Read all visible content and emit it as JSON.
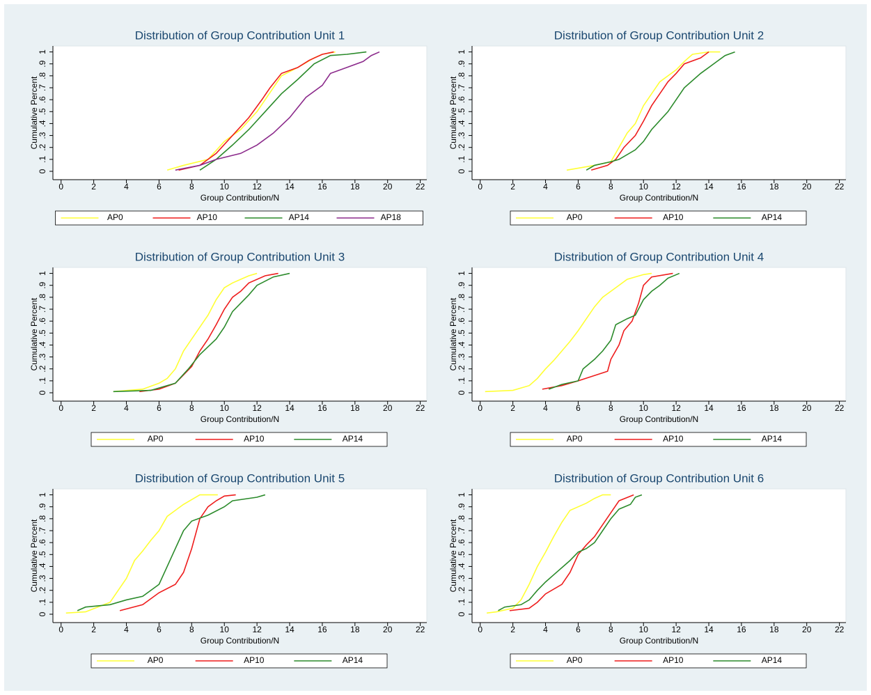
{
  "chart_data": [
    {
      "type": "line",
      "title": "Distribution of Group Contribution Unit 1",
      "xlabel": "Group Contribution/N",
      "ylabel": "Cumulative Percent",
      "xlim": [
        -0.5,
        22.4
      ],
      "ylim": [
        -0.07,
        1.05
      ],
      "xticks": [
        0,
        2,
        4,
        6,
        8,
        10,
        12,
        14,
        16,
        18,
        20,
        22
      ],
      "yticks": [
        0,
        {
          "value": 0.1,
          "label": ".1"
        },
        {
          "value": 0.2,
          "label": ".2"
        },
        {
          "value": 0.3,
          "label": ".3"
        },
        {
          "value": 0.4,
          "label": ".4"
        },
        {
          "value": 0.5,
          "label": ".5"
        },
        {
          "value": 0.6,
          "label": ".6"
        },
        {
          "value": 0.7,
          "label": ".7"
        },
        {
          "value": 0.8,
          "label": ".8"
        },
        {
          "value": 0.9,
          "label": ".9"
        },
        1
      ],
      "series": [
        {
          "name": "AP0",
          "color": "#ffff33",
          "x": [
            6.5,
            7.5,
            9,
            10,
            11,
            12,
            12.5,
            13,
            13.5,
            14.5,
            15.5,
            16,
            16.8
          ],
          "values": [
            0.01,
            0.05,
            0.1,
            0.25,
            0.35,
            0.5,
            0.6,
            0.7,
            0.8,
            0.87,
            0.95,
            0.98,
            1
          ]
        },
        {
          "name": "AP10",
          "color": "#ee1c1c",
          "x": [
            7.2,
            8.5,
            9.5,
            10.5,
            11.5,
            12.3,
            12.8,
            13.5,
            14.5,
            15.2,
            16,
            16.7
          ],
          "values": [
            0.01,
            0.05,
            0.15,
            0.3,
            0.45,
            0.6,
            0.7,
            0.82,
            0.87,
            0.93,
            0.98,
            1
          ]
        },
        {
          "name": "AP14",
          "color": "#2a8a2a",
          "x": [
            8.5,
            9.5,
            10.5,
            11.5,
            12.5,
            13.5,
            14.5,
            15.5,
            16.5,
            17.5,
            18.7
          ],
          "values": [
            0.01,
            0.1,
            0.22,
            0.35,
            0.5,
            0.65,
            0.77,
            0.9,
            0.97,
            0.98,
            1
          ]
        },
        {
          "name": "AP18",
          "color": "#8b2a8b",
          "x": [
            7,
            8.5,
            9.5,
            11,
            12,
            13,
            14,
            15,
            16,
            16.5,
            17.5,
            18.5,
            19,
            19.5
          ],
          "values": [
            0.01,
            0.05,
            0.1,
            0.15,
            0.22,
            0.32,
            0.45,
            0.62,
            0.72,
            0.82,
            0.87,
            0.92,
            0.97,
            1
          ]
        }
      ]
    },
    {
      "type": "line",
      "title": "Distribution of Group Contribution Unit 2",
      "xlabel": "Group Contribution/N",
      "ylabel": "Cumulative Percent",
      "xlim": [
        -0.5,
        22.4
      ],
      "ylim": [
        -0.07,
        1.05
      ],
      "xticks": [
        0,
        2,
        4,
        6,
        8,
        10,
        12,
        14,
        16,
        18,
        20,
        22
      ],
      "yticks": [
        0,
        {
          "value": 0.1,
          "label": ".1"
        },
        {
          "value": 0.2,
          "label": ".2"
        },
        {
          "value": 0.3,
          "label": ".3"
        },
        {
          "value": 0.4,
          "label": ".4"
        },
        {
          "value": 0.5,
          "label": ".5"
        },
        {
          "value": 0.6,
          "label": ".6"
        },
        {
          "value": 0.7,
          "label": ".7"
        },
        {
          "value": 0.8,
          "label": ".8"
        },
        {
          "value": 0.9,
          "label": ".9"
        },
        1
      ],
      "series": [
        {
          "name": "AP0",
          "color": "#ffff33",
          "x": [
            5.3,
            7,
            8,
            8.5,
            9,
            9.5,
            10,
            10.5,
            11,
            12,
            12.5,
            13,
            14,
            14.7
          ],
          "values": [
            0.01,
            0.05,
            0.08,
            0.2,
            0.32,
            0.4,
            0.55,
            0.65,
            0.75,
            0.85,
            0.92,
            0.98,
            1,
            1
          ]
        },
        {
          "name": "AP10",
          "color": "#ee1c1c",
          "x": [
            6.8,
            7.8,
            8.3,
            8.8,
            9.5,
            10,
            10.5,
            11,
            11.5,
            12,
            12.5,
            13.5,
            14
          ],
          "values": [
            0.01,
            0.05,
            0.1,
            0.2,
            0.3,
            0.42,
            0.55,
            0.65,
            0.75,
            0.82,
            0.9,
            0.95,
            1
          ]
        },
        {
          "name": "AP14",
          "color": "#2a8a2a",
          "x": [
            6.5,
            7,
            8,
            8.5,
            9.5,
            10,
            10.5,
            11.5,
            12,
            12.5,
            13.5,
            14.5,
            15,
            15.6
          ],
          "values": [
            0.01,
            0.05,
            0.08,
            0.1,
            0.18,
            0.25,
            0.35,
            0.5,
            0.6,
            0.7,
            0.82,
            0.92,
            0.97,
            1
          ]
        }
      ]
    },
    {
      "type": "line",
      "title": "Distribution of Group Contribution Unit 3",
      "xlabel": "Group Contribution/N",
      "ylabel": "Cumulative Percent",
      "xlim": [
        -0.5,
        22.4
      ],
      "ylim": [
        -0.07,
        1.05
      ],
      "xticks": [
        0,
        2,
        4,
        6,
        8,
        10,
        12,
        14,
        16,
        18,
        20,
        22
      ],
      "yticks": [
        0,
        {
          "value": 0.1,
          "label": ".1"
        },
        {
          "value": 0.2,
          "label": ".2"
        },
        {
          "value": 0.3,
          "label": ".3"
        },
        {
          "value": 0.4,
          "label": ".4"
        },
        {
          "value": 0.5,
          "label": ".5"
        },
        {
          "value": 0.6,
          "label": ".6"
        },
        {
          "value": 0.7,
          "label": ".7"
        },
        {
          "value": 0.8,
          "label": ".8"
        },
        {
          "value": 0.9,
          "label": ".9"
        },
        1
      ],
      "series": [
        {
          "name": "AP0",
          "color": "#ffff33",
          "x": [
            3.2,
            5,
            6,
            6.5,
            7,
            7.5,
            8,
            8.5,
            9,
            9.5,
            10,
            10.5,
            11,
            11.5,
            12
          ],
          "values": [
            0.01,
            0.03,
            0.08,
            0.12,
            0.2,
            0.35,
            0.45,
            0.55,
            0.65,
            0.78,
            0.88,
            0.92,
            0.95,
            0.98,
            1
          ]
        },
        {
          "name": "AP10",
          "color": "#ee1c1c",
          "x": [
            4.8,
            6,
            7,
            7.5,
            8,
            8.5,
            9,
            9.5,
            10,
            10.5,
            11,
            11.5,
            12.5,
            13.3
          ],
          "values": [
            0.01,
            0.03,
            0.08,
            0.15,
            0.22,
            0.35,
            0.45,
            0.57,
            0.7,
            0.8,
            0.85,
            0.92,
            0.98,
            1
          ]
        },
        {
          "name": "AP14",
          "color": "#2a8a2a",
          "x": [
            3.2,
            5.5,
            7,
            7.8,
            8.5,
            9.5,
            10,
            10.5,
            11,
            11.5,
            12,
            13,
            14
          ],
          "values": [
            0.01,
            0.02,
            0.08,
            0.2,
            0.32,
            0.45,
            0.55,
            0.68,
            0.75,
            0.82,
            0.9,
            0.97,
            1
          ]
        }
      ]
    },
    {
      "type": "line",
      "title": "Distribution of Group Contribution Unit 4",
      "xlabel": "Group Contribution/N",
      "ylabel": "Cumulative Percent",
      "xlim": [
        -0.5,
        22.4
      ],
      "ylim": [
        -0.07,
        1.05
      ],
      "xticks": [
        0,
        2,
        4,
        6,
        8,
        10,
        12,
        14,
        16,
        18,
        20,
        22
      ],
      "yticks": [
        0,
        {
          "value": 0.1,
          "label": ".1"
        },
        {
          "value": 0.2,
          "label": ".2"
        },
        {
          "value": 0.3,
          "label": ".3"
        },
        {
          "value": 0.4,
          "label": ".4"
        },
        {
          "value": 0.5,
          "label": ".5"
        },
        {
          "value": 0.6,
          "label": ".6"
        },
        {
          "value": 0.7,
          "label": ".7"
        },
        {
          "value": 0.8,
          "label": ".8"
        },
        {
          "value": 0.9,
          "label": ".9"
        },
        1
      ],
      "series": [
        {
          "name": "AP0",
          "color": "#ffff33",
          "x": [
            0.3,
            2,
            3,
            3.5,
            4,
            4.5,
            5,
            5.5,
            6,
            6.5,
            7,
            7.5,
            8.5,
            9,
            10,
            10.5
          ],
          "values": [
            0.01,
            0.02,
            0.06,
            0.12,
            0.2,
            0.27,
            0.35,
            0.43,
            0.52,
            0.62,
            0.72,
            0.8,
            0.9,
            0.95,
            0.99,
            1
          ]
        },
        {
          "name": "AP10",
          "color": "#ee1c1c",
          "x": [
            3.8,
            5,
            6,
            7.8,
            8,
            8.5,
            8.8,
            9.3,
            9.7,
            10,
            10.5,
            11.8
          ],
          "values": [
            0.03,
            0.06,
            0.1,
            0.18,
            0.28,
            0.4,
            0.52,
            0.6,
            0.75,
            0.9,
            0.97,
            1
          ]
        },
        {
          "name": "AP14",
          "color": "#2a8a2a",
          "x": [
            4.2,
            5,
            6,
            6.3,
            7,
            7.5,
            8,
            8.3,
            9,
            9.5,
            10,
            10.5,
            11,
            11.5,
            12.2
          ],
          "values": [
            0.03,
            0.07,
            0.1,
            0.2,
            0.28,
            0.35,
            0.44,
            0.57,
            0.62,
            0.65,
            0.78,
            0.85,
            0.9,
            0.96,
            1
          ]
        }
      ]
    },
    {
      "type": "line",
      "title": "Distribution of Group Contribution Unit 5",
      "xlabel": "Group Contribution/N",
      "ylabel": "Cumulative Percent",
      "xlim": [
        -0.5,
        22.4
      ],
      "ylim": [
        -0.07,
        1.05
      ],
      "xticks": [
        0,
        2,
        4,
        6,
        8,
        10,
        12,
        14,
        16,
        18,
        20,
        22
      ],
      "yticks": [
        0,
        {
          "value": 0.1,
          "label": ".1"
        },
        {
          "value": 0.2,
          "label": ".2"
        },
        {
          "value": 0.3,
          "label": ".3"
        },
        {
          "value": 0.4,
          "label": ".4"
        },
        {
          "value": 0.5,
          "label": ".5"
        },
        {
          "value": 0.6,
          "label": ".6"
        },
        {
          "value": 0.7,
          "label": ".7"
        },
        {
          "value": 0.8,
          "label": ".8"
        },
        {
          "value": 0.9,
          "label": ".9"
        },
        1
      ],
      "series": [
        {
          "name": "AP0",
          "color": "#ffff33",
          "x": [
            0.3,
            1.5,
            3,
            3.5,
            4,
            4.5,
            5,
            5.5,
            6,
            6.5,
            7,
            7.5,
            8,
            8.5,
            9.6
          ],
          "values": [
            0.01,
            0.02,
            0.1,
            0.2,
            0.3,
            0.45,
            0.53,
            0.62,
            0.7,
            0.82,
            0.87,
            0.92,
            0.96,
            1,
            1
          ]
        },
        {
          "name": "AP10",
          "color": "#ee1c1c",
          "x": [
            3.6,
            5,
            6,
            7,
            7.5,
            8,
            8.5,
            9,
            9.5,
            10,
            10.7
          ],
          "values": [
            0.03,
            0.08,
            0.18,
            0.25,
            0.35,
            0.55,
            0.8,
            0.9,
            0.95,
            0.99,
            1
          ]
        },
        {
          "name": "AP14",
          "color": "#2a8a2a",
          "x": [
            1,
            1.5,
            3,
            4,
            5,
            6,
            6.5,
            7,
            7.5,
            8,
            9,
            10,
            10.5,
            12,
            12.5
          ],
          "values": [
            0.03,
            0.06,
            0.08,
            0.12,
            0.15,
            0.25,
            0.4,
            0.55,
            0.7,
            0.78,
            0.83,
            0.9,
            0.95,
            0.98,
            1
          ]
        }
      ]
    },
    {
      "type": "line",
      "title": "Distribution of Group Contribution Unit 6",
      "xlabel": "Group Contribution/N",
      "ylabel": "Cumulative Percent",
      "xlim": [
        -0.5,
        22.4
      ],
      "ylim": [
        -0.07,
        1.05
      ],
      "xticks": [
        0,
        2,
        4,
        6,
        8,
        10,
        12,
        14,
        16,
        18,
        20,
        22
      ],
      "yticks": [
        0,
        {
          "value": 0.1,
          "label": ".1"
        },
        {
          "value": 0.2,
          "label": ".2"
        },
        {
          "value": 0.3,
          "label": ".3"
        },
        {
          "value": 0.4,
          "label": ".4"
        },
        {
          "value": 0.5,
          "label": ".5"
        },
        {
          "value": 0.6,
          "label": ".6"
        },
        {
          "value": 0.7,
          "label": ".7"
        },
        {
          "value": 0.8,
          "label": ".8"
        },
        {
          "value": 0.9,
          "label": ".9"
        },
        1
      ],
      "series": [
        {
          "name": "AP0",
          "color": "#ffff33",
          "x": [
            0.4,
            1,
            2,
            2.5,
            3,
            3.5,
            4,
            4.5,
            5,
            5.5,
            6.5,
            7,
            7.5,
            8
          ],
          "values": [
            0.01,
            0.02,
            0.05,
            0.12,
            0.25,
            0.4,
            0.52,
            0.65,
            0.77,
            0.87,
            0.93,
            0.97,
            1,
            1
          ]
        },
        {
          "name": "AP10",
          "color": "#ee1c1c",
          "x": [
            1.8,
            3,
            3.5,
            4,
            5,
            5.5,
            6,
            6.5,
            7,
            7.5,
            8,
            8.5,
            9.4
          ],
          "values": [
            0.03,
            0.05,
            0.1,
            0.17,
            0.25,
            0.35,
            0.5,
            0.58,
            0.65,
            0.75,
            0.85,
            0.95,
            1
          ]
        },
        {
          "name": "AP14",
          "color": "#2a8a2a",
          "x": [
            1.1,
            1.5,
            2.5,
            3,
            3.5,
            4,
            4.5,
            5.5,
            6,
            6.5,
            7,
            7.5,
            8,
            8.5,
            9.2,
            9.5,
            9.9
          ],
          "values": [
            0.03,
            0.06,
            0.08,
            0.12,
            0.2,
            0.27,
            0.33,
            0.45,
            0.52,
            0.55,
            0.6,
            0.7,
            0.8,
            0.88,
            0.92,
            0.98,
            1
          ]
        }
      ]
    }
  ]
}
